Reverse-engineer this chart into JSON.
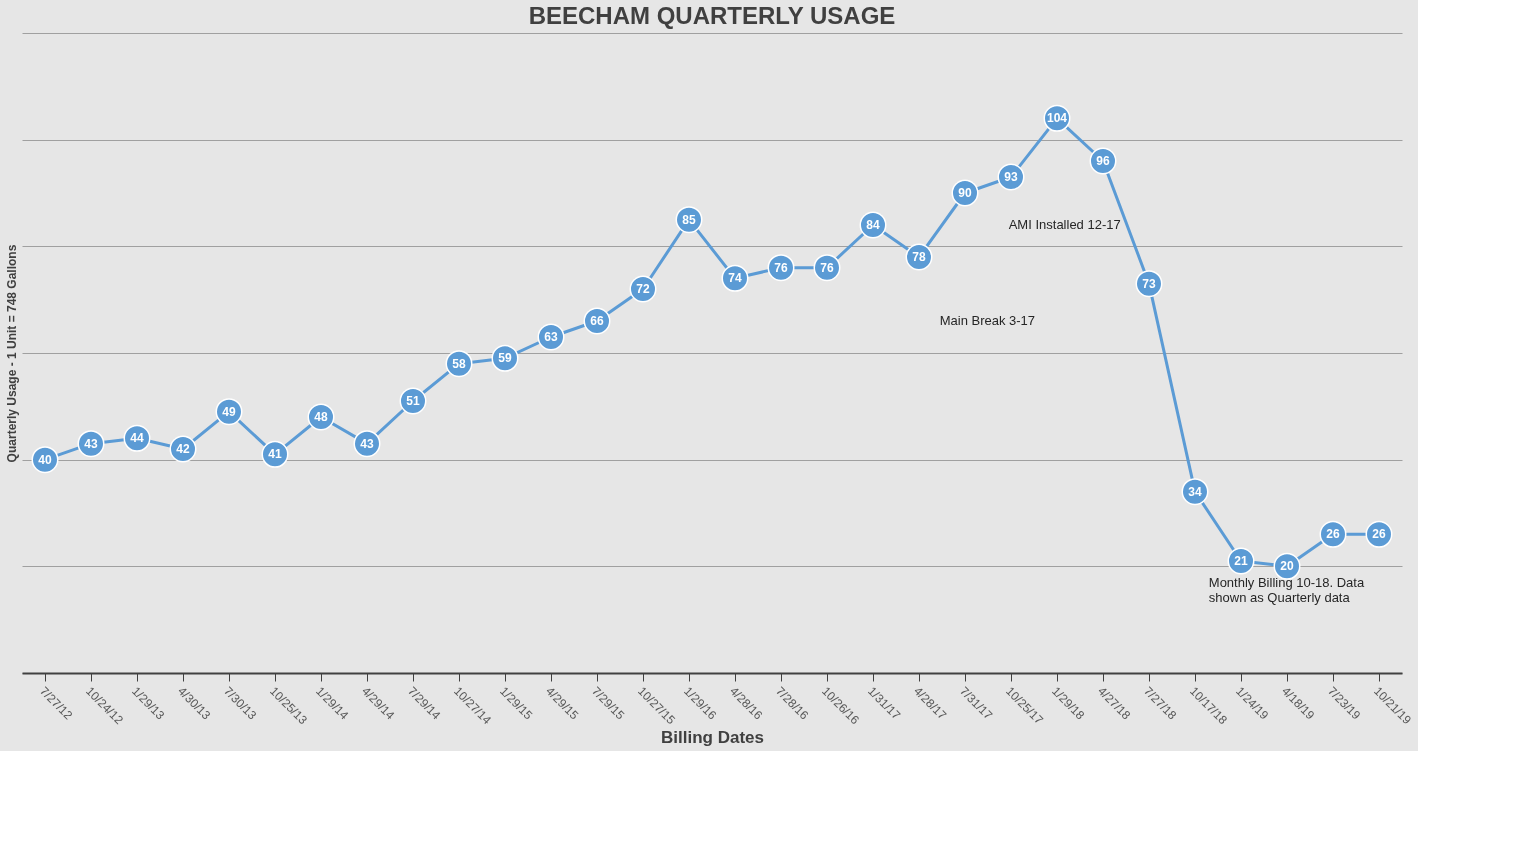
{
  "chart_data": {
    "type": "line",
    "title": "BEECHAM QUARTERLY USAGE",
    "xlabel": "Billing Dates",
    "ylabel": "Quarterly Usage - 1 Unit = 748 Gallons",
    "categories": [
      "7/27/12",
      "10/24/12",
      "1/29/13",
      "4/30/13",
      "7/30/13",
      "10/25/13",
      "1/29/14",
      "4/29/14",
      "7/29/14",
      "10/27/14",
      "1/29/15",
      "4/29/15",
      "7/29/15",
      "10/27/15",
      "1/29/16",
      "4/28/16",
      "7/28/16",
      "10/26/16",
      "1/31/17",
      "4/28/17",
      "7/31/17",
      "10/25/17",
      "1/29/18",
      "4/27/18",
      "7/27/18",
      "10/17/18",
      "1/24/19",
      "4/18/19",
      "7/23/19",
      "10/21/19"
    ],
    "series": [
      {
        "color": "#5b9bd5",
        "values": [
          40,
          43,
          44,
          42,
          49,
          41,
          48,
          43,
          51,
          58,
          59,
          63,
          66,
          72,
          85,
          74,
          76,
          76,
          84,
          78,
          90,
          93,
          104,
          96,
          73,
          34,
          21,
          20,
          26,
          26
        ]
      }
    ],
    "ylim": [
      0,
      120
    ],
    "yticks": [
      {
        "value": 0,
        "label": null
      },
      {
        "value": 20,
        "label": null
      },
      {
        "value": 40,
        "label": null
      },
      {
        "value": 60,
        "label": null
      },
      {
        "value": 80,
        "label": null
      },
      {
        "value": 100,
        "label": null
      },
      {
        "value": 120,
        "label": null
      }
    ],
    "tick_labels": "x",
    "grid": "y",
    "marker": "circle",
    "line_style": "solid",
    "data_labels": true,
    "annotations": [
      "AMI Installed 12-17",
      "Main Break 3-17",
      "Monthly Billing 10-18. Data\nshown as Quarterly data"
    ]
  }
}
